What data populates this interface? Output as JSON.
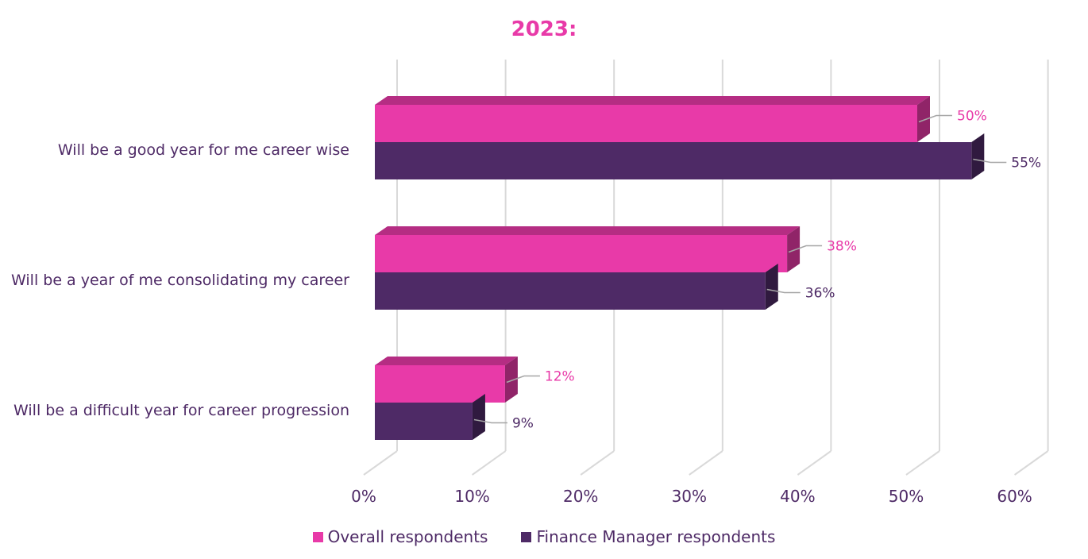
{
  "chart_data": {
    "type": "bar",
    "orientation": "horizontal",
    "title": "2023:",
    "categories": [
      "Will be a good year for me career wise",
      "Will be a year of me consolidating my career",
      "Will be a difficult year for career progression"
    ],
    "series": [
      {
        "name": "Overall respondents",
        "values": [
          50,
          38,
          12
        ],
        "labels": [
          "50%",
          "38%",
          "12%"
        ],
        "color": "#e83aa8"
      },
      {
        "name": "Finance Manager respondents",
        "values": [
          55,
          36,
          9
        ],
        "labels": [
          "55%",
          "36%",
          "9%"
        ],
        "color": "#4e2a66"
      }
    ],
    "xlim": [
      0,
      60
    ],
    "xticks": [
      "0%",
      "10%",
      "20%",
      "30%",
      "40%",
      "50%",
      "60%"
    ],
    "grid": true,
    "legend_position": "bottom",
    "style": "3d"
  }
}
